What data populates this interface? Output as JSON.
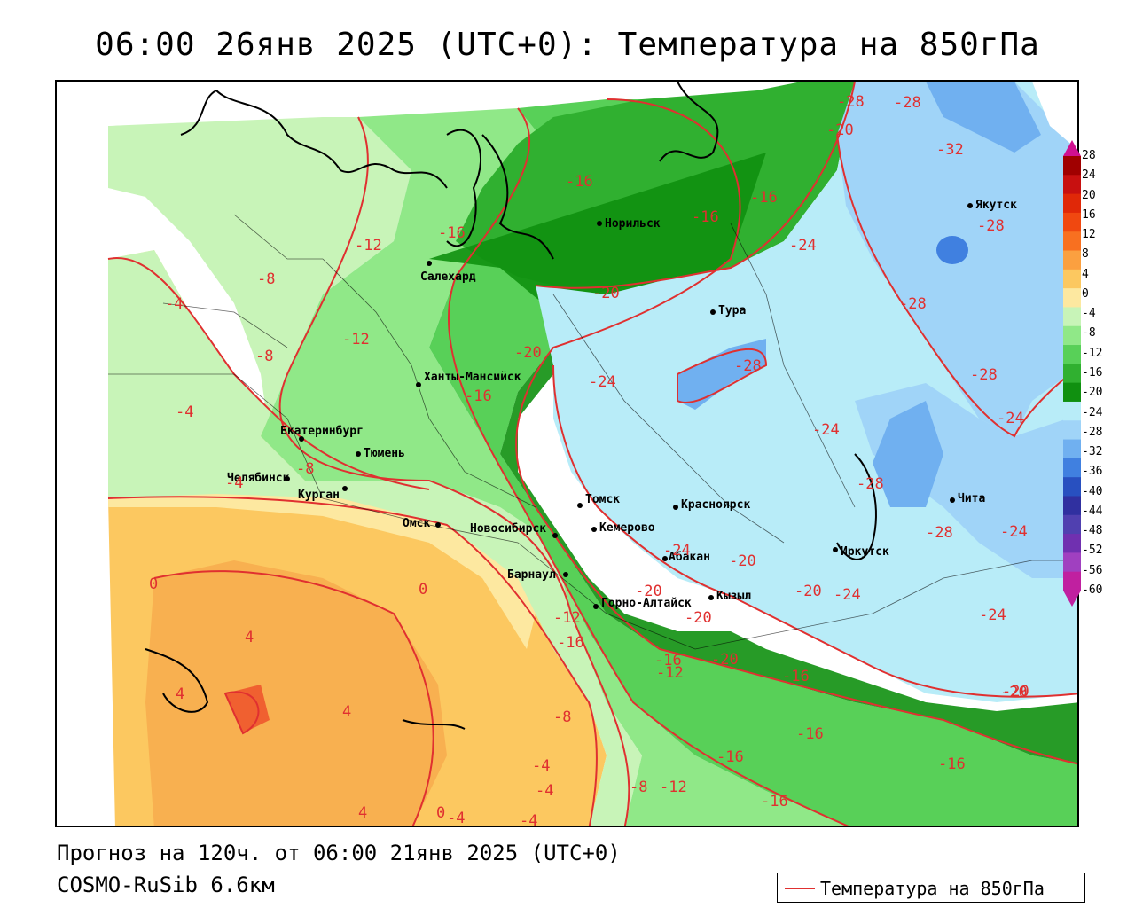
{
  "header": {
    "title": "06:00 26янв 2025 (UTC+0): Температура на 850гПа"
  },
  "footer": {
    "forecast": "Прогноз на 120ч. от 06:00 21янв 2025 (UTC+0)",
    "model": "COSMO-RuSib 6.6км"
  },
  "legend": {
    "label": "Температура на 850гПа",
    "line_color": "#e03030"
  },
  "colorbar": {
    "labels": [
      "28",
      "24",
      "20",
      "16",
      "12",
      "8",
      "4",
      "0",
      "-4",
      "-8",
      "-12",
      "-16",
      "-20",
      "-24",
      "-28",
      "-32",
      "-36",
      "-40",
      "-44",
      "-48",
      "-52",
      "-56",
      "-60"
    ],
    "colors": [
      "#a00000",
      "#c81010",
      "#e02808",
      "#f04810",
      "#f87020",
      "#fba040",
      "#fcc860",
      "#fde8a0",
      "#c8f4b8",
      "#90e888",
      "#58d058",
      "#30b030",
      "#109010",
      "#b8ecf8",
      "#a0d4f8",
      "#70b0f0",
      "#4080e0",
      "#2850c0",
      "#3030a0",
      "#5040b0",
      "#7030b0",
      "#a040c0",
      "#c020a0"
    ]
  },
  "cities": [
    {
      "name": "Салехард"
    },
    {
      "name": "Норильск"
    },
    {
      "name": "Якутск"
    },
    {
      "name": "Тура"
    },
    {
      "name": "Ханты-Мансийск"
    },
    {
      "name": "Екатеринбург"
    },
    {
      "name": "Тюмень"
    },
    {
      "name": "Челябинск"
    },
    {
      "name": "Курган"
    },
    {
      "name": "Омск"
    },
    {
      "name": "Новосибирск"
    },
    {
      "name": "Томск"
    },
    {
      "name": "Кемерово"
    },
    {
      "name": "Красноярск"
    },
    {
      "name": "Барнаул"
    },
    {
      "name": "Абакан"
    },
    {
      "name": "Горно-Алтайск"
    },
    {
      "name": "Кызыл"
    },
    {
      "name": "Иркутск"
    },
    {
      "name": "Чита"
    }
  ],
  "isotherm_labels": [
    "-28",
    "-28",
    "-20",
    "-32",
    "-16",
    "-16",
    "-16",
    "-28",
    "-12",
    "-16",
    "-24",
    "-8",
    "-20",
    "-28",
    "-4",
    "-12",
    "-20",
    "-8",
    "-24",
    "-28",
    "-16",
    "-28",
    "-24",
    "-4",
    "-24",
    "-8",
    "-4",
    "-28",
    "-24",
    "-28",
    "-24",
    "-20",
    "-20",
    "0",
    "0",
    "-20",
    "-24",
    "-12",
    "-20",
    "-24",
    "-16",
    "4",
    "-16",
    "-12",
    "-20",
    "-20",
    "-16",
    "4",
    "4",
    "-8",
    "-16",
    "-16",
    "-20",
    "-4",
    "-16",
    "-8",
    "-12",
    "-4",
    "-16",
    "4",
    "0",
    "-4",
    "-4"
  ]
}
